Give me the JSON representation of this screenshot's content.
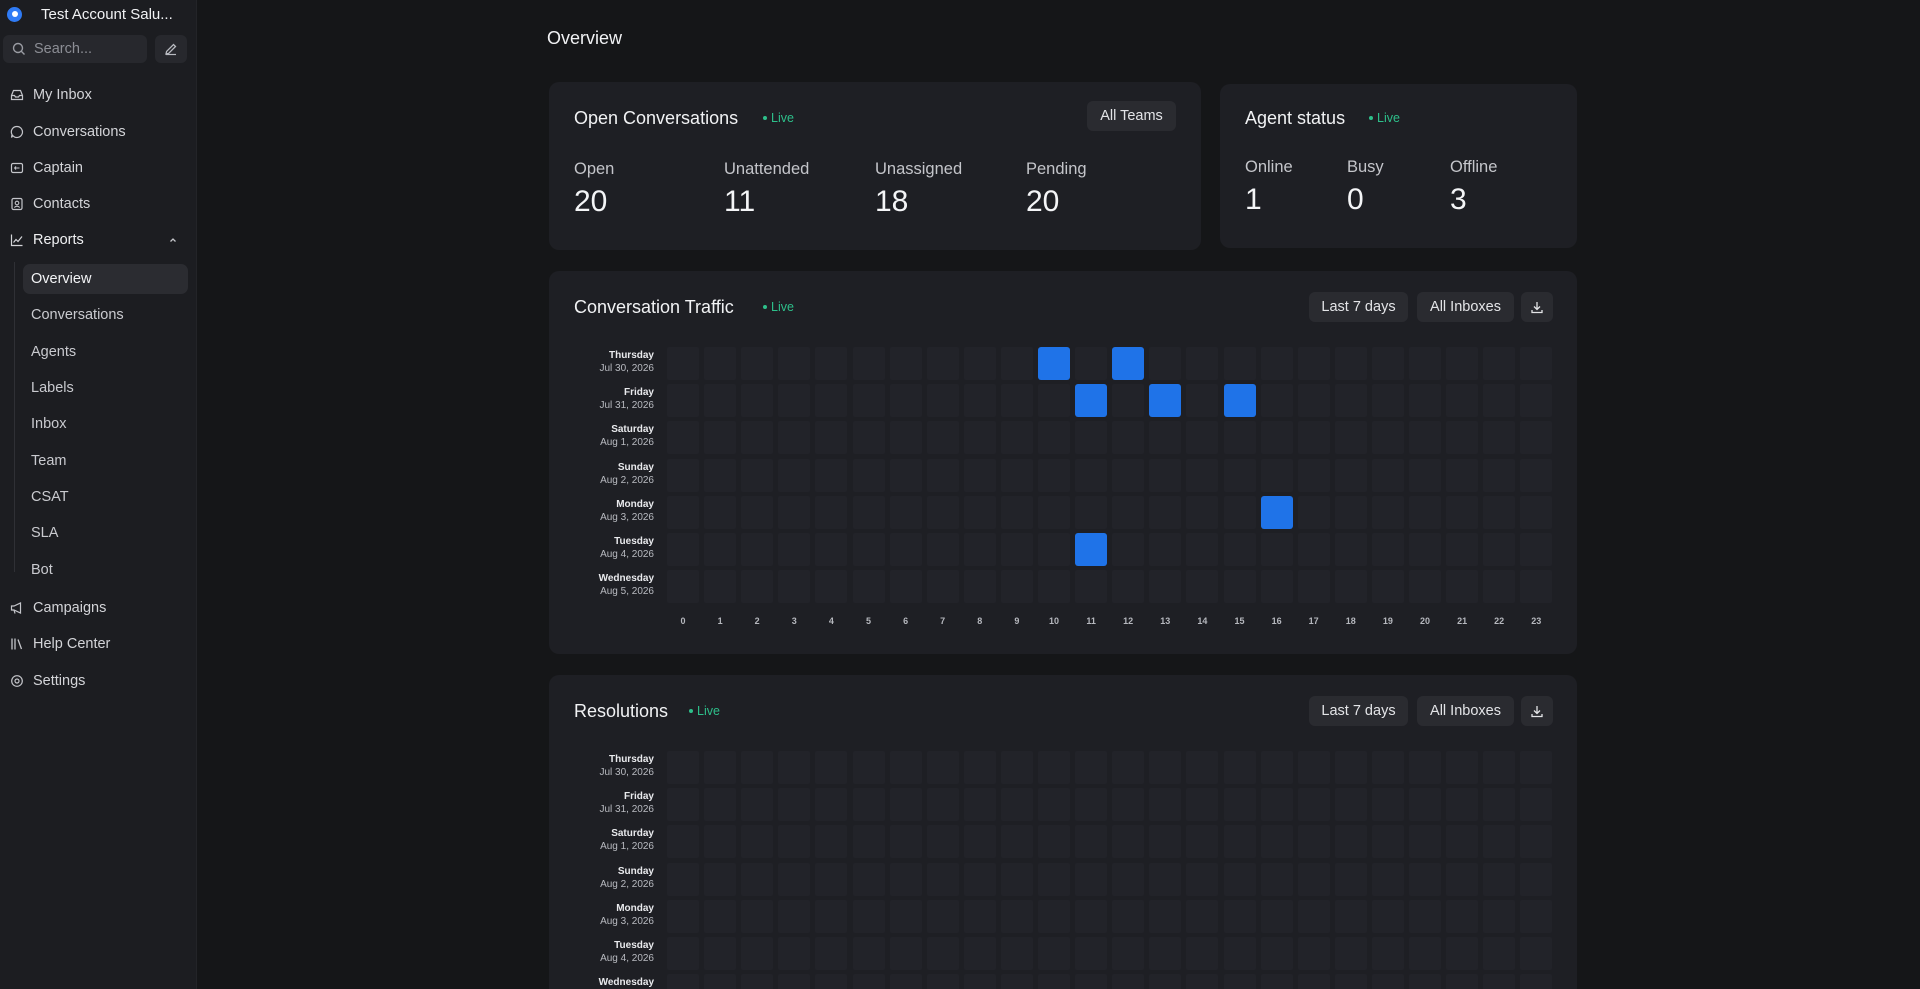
{
  "sidebar": {
    "account_name": "Test Account Salu...",
    "search_placeholder": "Search...",
    "nav": {
      "my_inbox": "My Inbox",
      "conversations": "Conversations",
      "captain": "Captain",
      "contacts": "Contacts",
      "reports": "Reports",
      "campaigns": "Campaigns",
      "help_center": "Help Center",
      "settings": "Settings"
    },
    "reports_sub": [
      "Overview",
      "Conversations",
      "Agents",
      "Labels",
      "Inbox",
      "Team",
      "CSAT",
      "SLA",
      "Bot"
    ],
    "active_sub": "Overview"
  },
  "page": {
    "title": "Overview"
  },
  "open_conversations": {
    "title": "Open Conversations",
    "live": "Live",
    "filter": "All Teams",
    "metrics": [
      {
        "label": "Open",
        "value": "20"
      },
      {
        "label": "Unattended",
        "value": "11"
      },
      {
        "label": "Unassigned",
        "value": "18"
      },
      {
        "label": "Pending",
        "value": "20"
      }
    ]
  },
  "agent_status": {
    "title": "Agent status",
    "live": "Live",
    "metrics": [
      {
        "label": "Online",
        "value": "1"
      },
      {
        "label": "Busy",
        "value": "0"
      },
      {
        "label": "Offline",
        "value": "3"
      }
    ]
  },
  "days": [
    {
      "day": "Thursday",
      "date": "Jul 30, 2026"
    },
    {
      "day": "Friday",
      "date": "Jul 31, 2026"
    },
    {
      "day": "Saturday",
      "date": "Aug 1, 2026"
    },
    {
      "day": "Sunday",
      "date": "Aug 2, 2026"
    },
    {
      "day": "Monday",
      "date": "Aug 3, 2026"
    },
    {
      "day": "Tuesday",
      "date": "Aug 4, 2026"
    },
    {
      "day": "Wednesday",
      "date": "Aug 5, 2026"
    }
  ],
  "hours": [
    "0",
    "1",
    "2",
    "3",
    "4",
    "5",
    "6",
    "7",
    "8",
    "9",
    "10",
    "11",
    "12",
    "13",
    "14",
    "15",
    "16",
    "17",
    "18",
    "19",
    "20",
    "21",
    "22",
    "23"
  ],
  "conversation_traffic": {
    "title": "Conversation Traffic",
    "live": "Live",
    "range": "Last 7 days",
    "inbox": "All Inboxes",
    "active_cells": [
      {
        "day": "Thursday",
        "hour": 10
      },
      {
        "day": "Thursday",
        "hour": 12
      },
      {
        "day": "Friday",
        "hour": 11
      },
      {
        "day": "Friday",
        "hour": 13
      },
      {
        "day": "Friday",
        "hour": 15
      },
      {
        "day": "Monday",
        "hour": 16
      },
      {
        "day": "Tuesday",
        "hour": 11
      }
    ]
  },
  "resolutions": {
    "title": "Resolutions",
    "live": "Live",
    "range": "Last 7 days",
    "inbox": "All Inboxes",
    "active_cells": []
  },
  "colors": {
    "accent": "#1f73e8",
    "live": "#2dbf8a",
    "cell": "#222329"
  }
}
